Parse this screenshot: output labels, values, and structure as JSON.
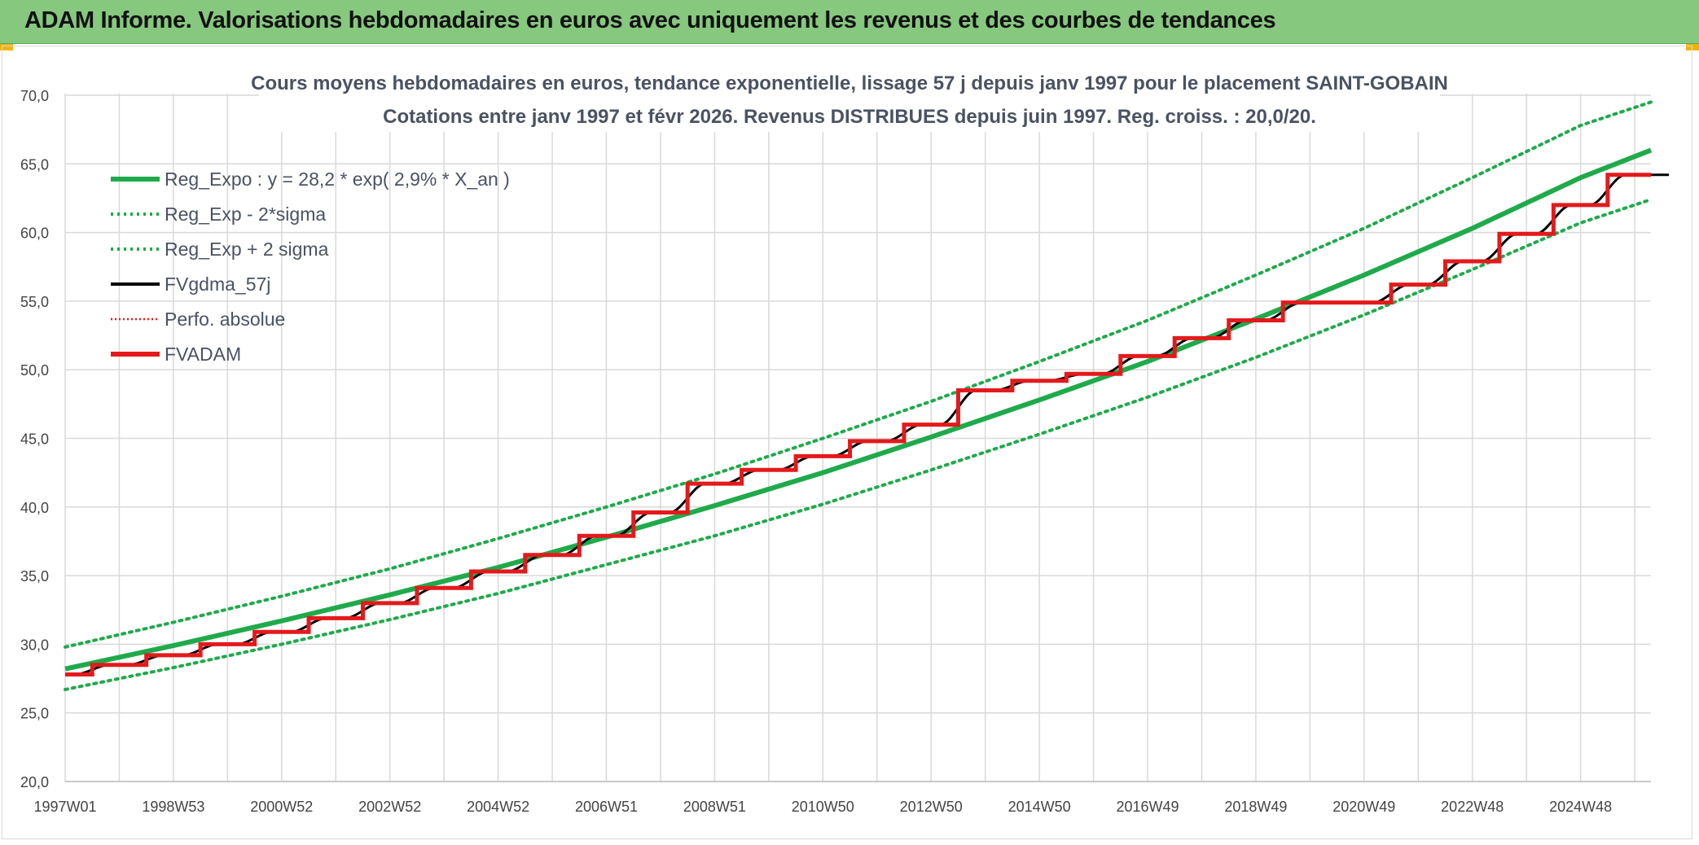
{
  "banner": {
    "title": "ADAM Informe. Valorisations hebdomadaires en euros avec uniquement les revenus et des courbes de tendances"
  },
  "colors": {
    "banner_bg": "#86c87e",
    "trend_green": "#1faa4b",
    "red": "#e31a1c",
    "black": "#000000",
    "grid": "#d9d9d9",
    "accent_corner": "#f0b400"
  },
  "chart_data": {
    "type": "line",
    "title": "Cours moyens hebdomadaires en euros, tendance exponentielle, lissage 57 j depuis janv 1997 pour le placement SAINT-GOBAIN",
    "subtitle": "Cotations entre janv 1997 et févr 2026. Revenus DISTRIBUES depuis juin 1997. Reg. croiss. : 20,0/20.",
    "xlabel": "",
    "ylabel": "",
    "ylim": [
      20,
      70
    ],
    "xlim": [
      1997.0,
      2026.3
    ],
    "grid": true,
    "legend_position": "top-left",
    "x_tick_labels": [
      "1997W01",
      "1998W53",
      "2000W52",
      "2002W52",
      "2004W52",
      "2006W51",
      "2008W51",
      "2010W50",
      "2012W50",
      "2014W50",
      "2016W49",
      "2018W49",
      "2020W49",
      "2022W48",
      "2024W48"
    ],
    "x_ticks_at": [
      1997.0,
      1999.0,
      2001.0,
      2003.0,
      2005.0,
      2007.0,
      2009.0,
      2011.0,
      2013.0,
      2015.0,
      2017.0,
      2019.0,
      2021.0,
      2023.0,
      2025.0
    ],
    "y_tick_labels": [
      "20,0",
      "25,0",
      "30,0",
      "35,0",
      "40,0",
      "45,0",
      "50,0",
      "55,0",
      "60,0",
      "65,0",
      "70,0"
    ],
    "y_ticks": [
      20,
      25,
      30,
      35,
      40,
      45,
      50,
      55,
      60,
      65,
      70
    ],
    "legend": [
      {
        "label": "Reg_Expo : y = 28,2 * exp( 2,9% *  X_an )",
        "color": "#1faa4b",
        "style": "solid-thick"
      },
      {
        "label": "Reg_Exp - 2*sigma",
        "color": "#1faa4b",
        "style": "dotted"
      },
      {
        "label": "Reg_Exp + 2 sigma",
        "color": "#1faa4b",
        "style": "dotted"
      },
      {
        "label": "FVgdma_57j",
        "color": "#000000",
        "style": "solid"
      },
      {
        "label": "Perfo. absolue",
        "color": "#e31a1c",
        "style": "dotted-thin"
      },
      {
        "label": "FVADAM",
        "color": "#e31a1c",
        "style": "solid-thick"
      }
    ],
    "series": [
      {
        "name": "Reg_Expo : y = 28,2 * exp( 2,9% *  X_an )",
        "x": [
          1997,
          1999,
          2001,
          2003,
          2005,
          2007,
          2009,
          2011,
          2013,
          2015,
          2017,
          2019,
          2021,
          2023,
          2025,
          2026.3
        ],
        "values": [
          28.2,
          29.9,
          31.7,
          33.6,
          35.6,
          37.8,
          40.1,
          42.5,
          45.1,
          47.8,
          50.6,
          53.7,
          56.9,
          60.3,
          64.0,
          66.0
        ]
      },
      {
        "name": "Reg_Exp + 2 sigma",
        "x": [
          1997,
          1999,
          2001,
          2003,
          2005,
          2007,
          2009,
          2011,
          2013,
          2015,
          2017,
          2019,
          2021,
          2023,
          2025,
          2026.3
        ],
        "values": [
          29.8,
          31.6,
          33.5,
          35.5,
          37.7,
          40.0,
          42.4,
          45.0,
          47.7,
          50.6,
          53.6,
          56.9,
          60.3,
          64.0,
          67.8,
          69.5
        ]
      },
      {
        "name": "Reg_Exp - 2*sigma",
        "x": [
          1997,
          1999,
          2001,
          2003,
          2005,
          2007,
          2009,
          2011,
          2013,
          2015,
          2017,
          2019,
          2021,
          2023,
          2025,
          2026.3
        ],
        "values": [
          26.7,
          28.3,
          30.0,
          31.8,
          33.7,
          35.8,
          37.9,
          40.2,
          42.7,
          45.3,
          48.0,
          50.9,
          54.0,
          57.3,
          60.7,
          62.4
        ]
      },
      {
        "name": "FVADAM",
        "x": [
          1997.0,
          1997.5,
          1998.5,
          1999.5,
          2000.5,
          2001.5,
          2002.5,
          2003.5,
          2004.5,
          2005.5,
          2006.5,
          2007.5,
          2008.5,
          2009.5,
          2010.5,
          2011.5,
          2012.5,
          2013.5,
          2014.5,
          2015.5,
          2016.5,
          2017.5,
          2018.5,
          2019.5,
          2020.5,
          2021.5,
          2022.5,
          2023.5,
          2024.5,
          2025.5,
          2026.3
        ],
        "values": [
          27.8,
          28.5,
          29.2,
          30.0,
          30.9,
          31.9,
          33.0,
          34.1,
          35.3,
          36.5,
          37.9,
          39.6,
          41.7,
          42.7,
          43.7,
          44.8,
          46.0,
          48.5,
          49.2,
          49.7,
          51.0,
          52.3,
          53.6,
          54.9,
          54.9,
          56.2,
          57.9,
          59.9,
          62.0,
          64.2,
          64.2
        ]
      }
    ]
  }
}
